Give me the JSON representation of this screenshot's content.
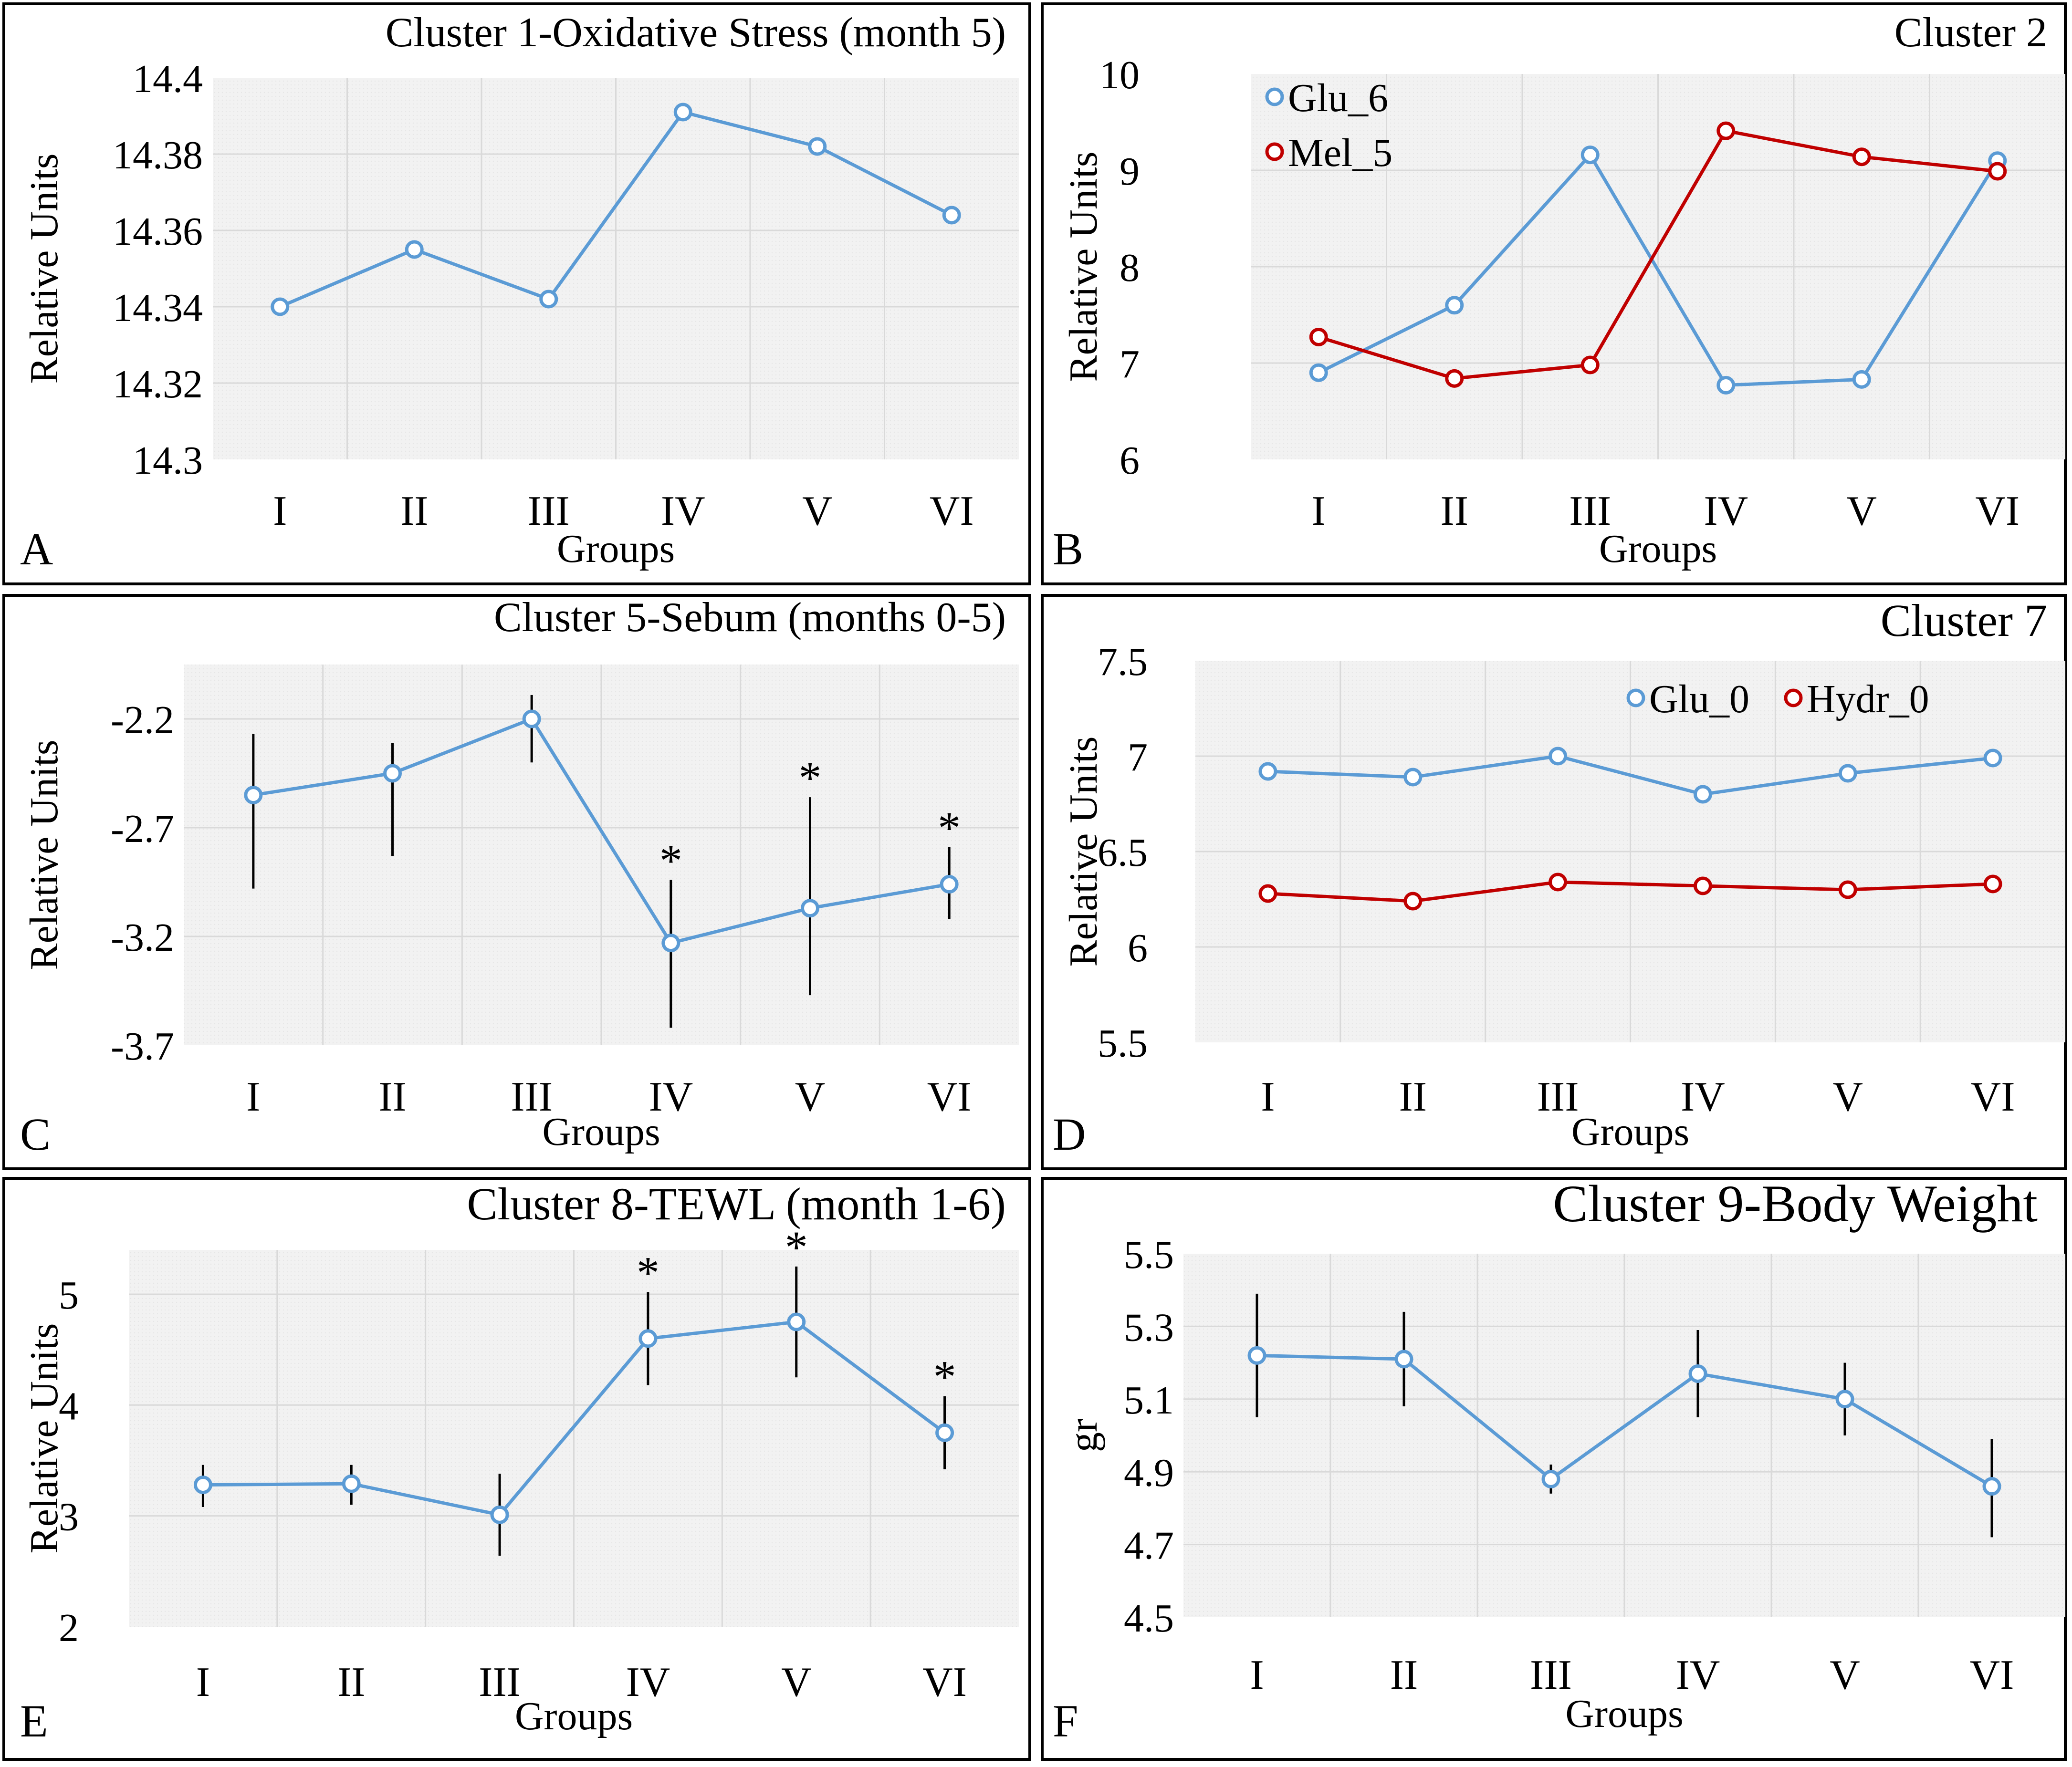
{
  "figure": {
    "colors": {
      "blue": "#5b9bd5",
      "red": "#c00000",
      "plot_bg": "#f2f2f2",
      "grid": "#d9d9d9",
      "error_bar": "#000000"
    }
  },
  "panels": [
    {
      "letter": "A",
      "ylabel": "Relative Units",
      "xlabel": "Groups",
      "title": "Cluster 1-Oxidative Stress (month 5)"
    },
    {
      "letter": "B",
      "ylabel": "Relative Units",
      "xlabel": "Groups",
      "title": "Cluster 2"
    },
    {
      "letter": "C",
      "ylabel": "Relative Units",
      "xlabel": "Groups",
      "title": "Cluster 5-Sebum (months 0-5)"
    },
    {
      "letter": "D",
      "ylabel": "Relative Units",
      "xlabel": "Groups",
      "title": "Cluster 7"
    },
    {
      "letter": "E",
      "ylabel": "Relative Units",
      "xlabel": "Groups",
      "title": "Cluster 8-TEWL (month 1-6)"
    },
    {
      "letter": "F",
      "ylabel": "gr",
      "xlabel": "Groups",
      "title": "Cluster 9-Body Weight"
    }
  ],
  "chart_data": [
    {
      "type": "line",
      "panel": "A",
      "title": "Cluster 1-Oxidative Stress (month 5)",
      "xlabel": "Groups",
      "ylabel": "Relative Units",
      "categories": [
        "I",
        "II",
        "III",
        "IV",
        "V",
        "VI"
      ],
      "ylim": [
        14.3,
        14.4
      ],
      "yticks": [
        "14.3",
        "14.32",
        "14.34",
        "14.36",
        "14.38",
        "14.4"
      ],
      "series": [
        {
          "name": "",
          "color": "#5b9bd5",
          "values": [
            14.34,
            14.355,
            14.342,
            14.391,
            14.382,
            14.364
          ]
        }
      ]
    },
    {
      "type": "line",
      "panel": "B",
      "title": "Cluster 2",
      "xlabel": "Groups",
      "ylabel": "Relative Units",
      "categories": [
        "I",
        "II",
        "III",
        "IV",
        "V",
        "VI"
      ],
      "ylim": [
        6,
        10
      ],
      "yticks": [
        "6",
        "7",
        "8",
        "9",
        "10"
      ],
      "legend": "top-left",
      "series": [
        {
          "name": "Glu_6",
          "color": "#5b9bd5",
          "values": [
            6.9,
            7.6,
            9.16,
            6.77,
            6.83,
            9.1
          ]
        },
        {
          "name": "Mel_5",
          "color": "#c00000",
          "values": [
            7.27,
            6.84,
            6.98,
            9.41,
            9.14,
            8.99
          ]
        }
      ]
    },
    {
      "type": "line",
      "panel": "C",
      "title": "Cluster 5-Sebum (months 0-5)",
      "xlabel": "Groups",
      "ylabel": "Relative Units",
      "categories": [
        "I",
        "II",
        "III",
        "IV",
        "V",
        "VI"
      ],
      "ylim": [
        -3.7,
        -1.95
      ],
      "yticks": [
        "-2.2",
        "-2.7",
        "-3.2",
        "-3.7"
      ],
      "series": [
        {
          "name": "",
          "color": "#5b9bd5",
          "values": [
            -2.55,
            -2.45,
            -2.2,
            -3.23,
            -3.07,
            -2.96
          ],
          "err_low": [
            -2.98,
            -2.83,
            -2.4,
            -3.62,
            -3.47,
            -3.12
          ],
          "err_high": [
            -2.27,
            -2.31,
            -2.09,
            -2.94,
            -2.56,
            -2.79
          ],
          "significant": [
            false,
            false,
            false,
            true,
            true,
            true
          ]
        }
      ]
    },
    {
      "type": "line",
      "panel": "D",
      "title": "Cluster 7",
      "xlabel": "Groups",
      "ylabel": "Relative Units",
      "categories": [
        "I",
        "II",
        "III",
        "IV",
        "V",
        "VI"
      ],
      "ylim": [
        5.5,
        7.5
      ],
      "yticks": [
        "5.5",
        "6",
        "6.5",
        "7",
        "7.5"
      ],
      "legend": "top-right",
      "series": [
        {
          "name": "Glu_0",
          "color": "#5b9bd5",
          "values": [
            6.92,
            6.89,
            7.0,
            6.8,
            6.91,
            6.99
          ]
        },
        {
          "name": "Hydr_0",
          "color": "#c00000",
          "values": [
            6.28,
            6.24,
            6.34,
            6.32,
            6.3,
            6.33
          ]
        }
      ]
    },
    {
      "type": "line",
      "panel": "E",
      "title": "Cluster 8-TEWL (month 1-6)",
      "xlabel": "Groups",
      "ylabel": "Relative Units",
      "categories": [
        "I",
        "II",
        "III",
        "IV",
        "V",
        "VI"
      ],
      "ylim": [
        2,
        5.4
      ],
      "yticks": [
        "2",
        "3",
        "4",
        "5"
      ],
      "series": [
        {
          "name": "",
          "color": "#5b9bd5",
          "values": [
            3.28,
            3.29,
            3.01,
            4.6,
            4.75,
            3.75
          ],
          "err_low": [
            3.08,
            3.1,
            2.64,
            4.18,
            4.25,
            3.42
          ],
          "err_high": [
            3.46,
            3.46,
            3.38,
            5.02,
            5.25,
            4.08
          ],
          "significant": [
            false,
            false,
            false,
            true,
            true,
            true
          ]
        }
      ]
    },
    {
      "type": "line",
      "panel": "F",
      "title": "Cluster 9-Body Weight",
      "xlabel": "Groups",
      "ylabel": "gr",
      "categories": [
        "I",
        "II",
        "III",
        "IV",
        "V",
        "VI"
      ],
      "ylim": [
        4.5,
        5.5
      ],
      "yticks": [
        "4.5",
        "4.7",
        "4.9",
        "5.1",
        "5.3",
        "5.5"
      ],
      "series": [
        {
          "name": "",
          "color": "#5b9bd5",
          "values": [
            5.22,
            5.21,
            4.88,
            5.17,
            5.1,
            4.86
          ],
          "err_low": [
            5.05,
            5.08,
            4.84,
            5.05,
            5.0,
            4.72
          ],
          "err_high": [
            5.39,
            5.34,
            4.92,
            5.29,
            5.2,
            4.99
          ],
          "significant": [
            false,
            false,
            false,
            false,
            false,
            false
          ]
        }
      ]
    }
  ]
}
